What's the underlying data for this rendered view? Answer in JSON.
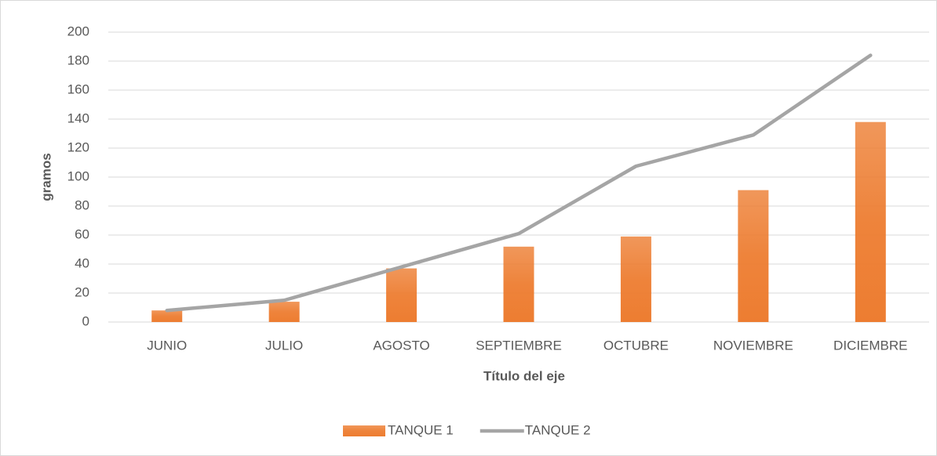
{
  "chart_data": {
    "type": "combo",
    "x_label": "Título del eje",
    "y_label": "gramos",
    "categories": [
      "JUNIO",
      "JULIO",
      "AGOSTO",
      "SEPTIEMBRE",
      "OCTUBRE",
      "NOVIEMBRE",
      "DICIEMBRE"
    ],
    "series": [
      {
        "name": "TANQUE 1",
        "type": "bar",
        "color": "#ed7d31",
        "values": [
          8,
          14,
          37,
          52,
          59,
          91,
          138
        ]
      },
      {
        "name": "TANQUE 2",
        "type": "line",
        "color": "#a5a5a5",
        "values": [
          8,
          15,
          38,
          61,
          107.5,
          129,
          184
        ]
      }
    ],
    "ylim": [
      0,
      200
    ],
    "yticks": [
      0,
      20,
      40,
      60,
      80,
      100,
      120,
      140,
      160,
      180,
      200
    ],
    "grid": true,
    "legend": "bottom"
  }
}
